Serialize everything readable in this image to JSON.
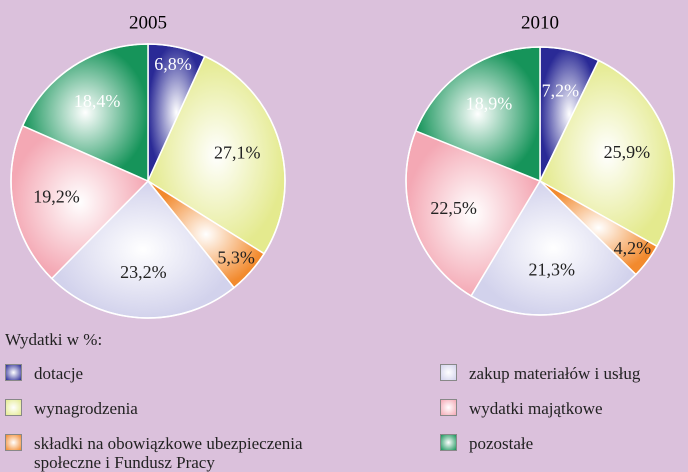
{
  "chart_data": [
    {
      "type": "pie",
      "title": "2005",
      "values": [
        6.8,
        27.1,
        5.3,
        23.2,
        19.2,
        18.4
      ],
      "value_labels": [
        "6,8%",
        "27,1%",
        "5,3%",
        "23,2%",
        "19,2%",
        "18,4%"
      ]
    },
    {
      "type": "pie",
      "title": "2010",
      "values": [
        7.2,
        25.9,
        4.2,
        21.3,
        22.5,
        18.9
      ],
      "value_labels": [
        "7,2%",
        "25,9%",
        "4,2%",
        "21,3%",
        "22,5%",
        "18,9%"
      ]
    }
  ],
  "legend": {
    "title": "Wydatki w %:",
    "categories": [
      "dotacje",
      "wynagrodzenia",
      "składki na obowiązkowe ubezpieczenia społeczne i Fundusz Pracy",
      "zakup materiałów i usług",
      "wydatki majątkowe",
      "pozostałe"
    ],
    "colors": [
      "#2a2a96",
      "#e4ea8e",
      "#f28a2e",
      "#d2d2ec",
      "#f4a8b4",
      "#16945a"
    ]
  }
}
